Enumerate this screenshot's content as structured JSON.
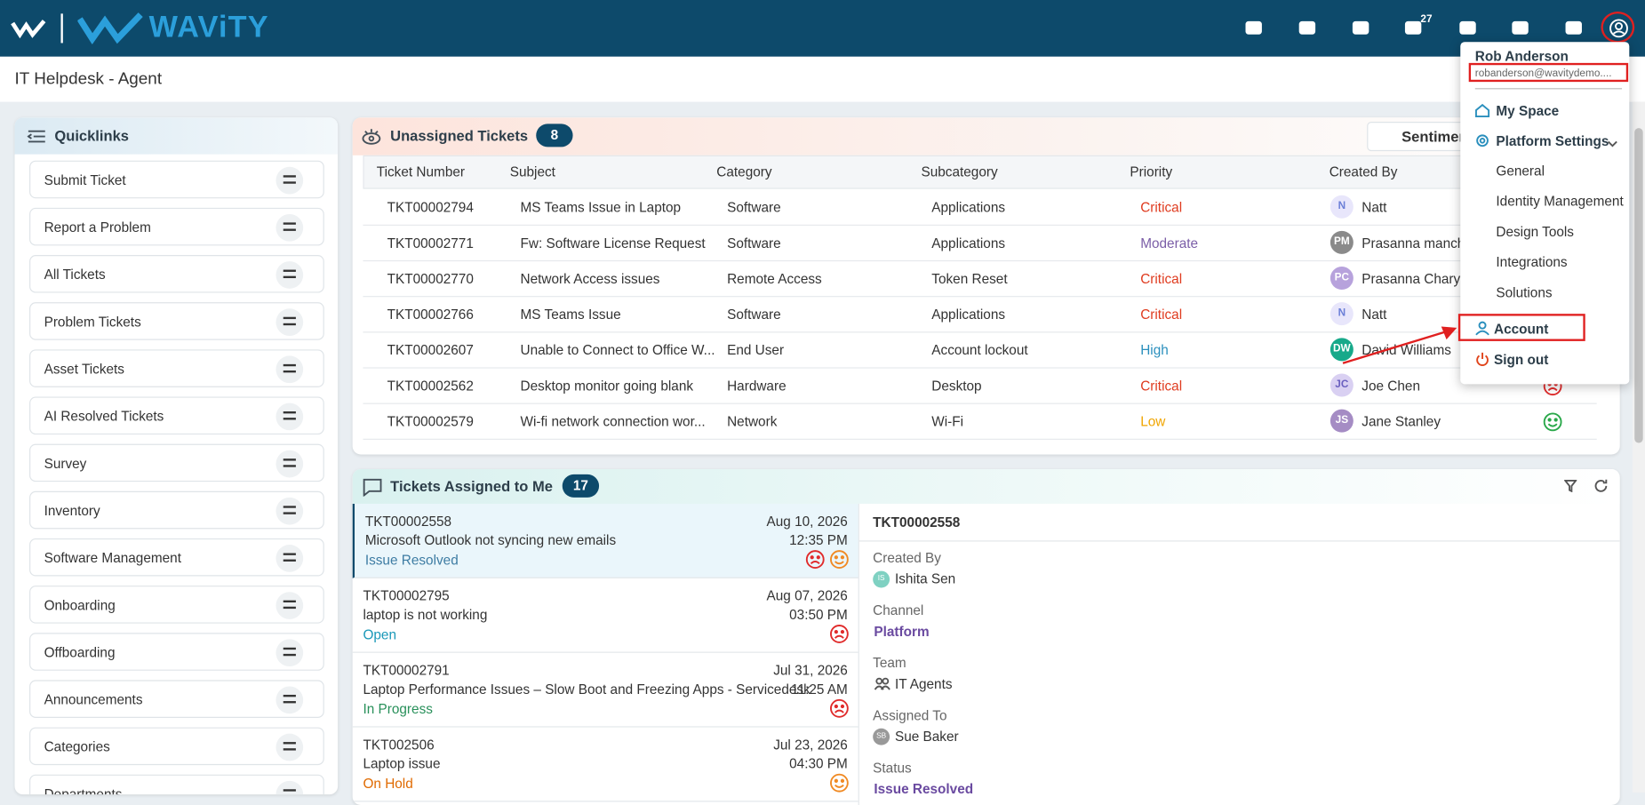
{
  "header": {
    "brand": "WAViTY",
    "notification_count": 27
  },
  "page_title": "IT Helpdesk - Agent",
  "quicklinks": {
    "title": "Quicklinks",
    "items": [
      "Submit Ticket",
      "Report a Problem",
      "All Tickets",
      "Problem Tickets",
      "Asset Tickets",
      "AI Resolved Tickets",
      "Survey",
      "Inventory",
      "Software Management",
      "Onboarding",
      "Offboarding",
      "Announcements",
      "Categories",
      "Departments"
    ]
  },
  "unassigned": {
    "title": "Unassigned Tickets",
    "count": 8,
    "sentiment_button": "Sentiment",
    "columns": [
      "Ticket Number",
      "Subject",
      "Category",
      "Subcategory",
      "Priority",
      "Created By"
    ],
    "rows": [
      [
        "TKT00002794",
        "MS Teams Issue in Laptop",
        "Software",
        "Applications",
        "Critical",
        "N",
        "Natt"
      ],
      [
        "TKT00002771",
        "Fw: Software License Request",
        "Software",
        "Applications",
        "Moderate",
        "PM",
        "Prasanna manchir"
      ],
      [
        "TKT00002770",
        "Network Access issues",
        "Remote Access",
        "Token Reset",
        "Critical",
        "PC",
        "Prasanna Chary"
      ],
      [
        "TKT00002766",
        "MS Teams Issue",
        "Software",
        "Applications",
        "Critical",
        "N",
        "Natt"
      ],
      [
        "TKT00002607",
        "Unable to Connect to Office W...",
        "End User",
        "Account lockout",
        "High",
        "DW",
        "David Williams"
      ],
      [
        "TKT00002562",
        "Desktop monitor going blank",
        "Hardware",
        "Desktop",
        "Critical",
        "JC",
        "Joe Chen"
      ],
      [
        "TKT00002579",
        "Wi-fi network connection wor...",
        "Network",
        "Wi-Fi",
        "Low",
        "JS",
        "Jane Stanley"
      ]
    ]
  },
  "assigned": {
    "title": "Tickets Assigned to Me",
    "count": 17,
    "items": [
      {
        "id": "TKT00002558",
        "date": "Aug 10, 2026",
        "subject": "Microsoft Outlook not syncing new emails",
        "time": "12:35 PM",
        "status": "Issue Resolved"
      },
      {
        "id": "TKT00002795",
        "date": "Aug 07, 2026",
        "subject": "laptop is not working",
        "time": "03:50 PM",
        "status": "Open"
      },
      {
        "id": "TKT00002791",
        "date": "Jul 31, 2026",
        "subject": "Laptop Performance Issues – Slow Boot and Freezing Apps - Servicedesk",
        "time": "11:25 AM",
        "status": "In Progress"
      },
      {
        "id": "TKT002506",
        "date": "Jul 23, 2026",
        "subject": "Laptop issue",
        "time": "04:30 PM",
        "status": "On Hold"
      }
    ],
    "detail": {
      "id": "TKT00002558",
      "fields": [
        {
          "label": "Created By",
          "initials": "IS",
          "value": "Ishita Sen"
        },
        {
          "label": "Channel",
          "value": "Platform"
        },
        {
          "label": "Team",
          "value": "IT Agents"
        },
        {
          "label": "Assigned To",
          "initials": "SB",
          "value": "Sue Baker"
        },
        {
          "label": "Status",
          "value": "Issue Resolved"
        }
      ]
    }
  },
  "user_menu": {
    "name": "Rob Anderson",
    "email": "robanderson@wavitydemo....",
    "items": [
      "My Space",
      "Platform Settings"
    ],
    "settings": [
      "General",
      "Identity Management",
      "Design Tools",
      "Integrations",
      "Solutions"
    ],
    "footer": [
      "Account",
      "Sign out"
    ]
  }
}
